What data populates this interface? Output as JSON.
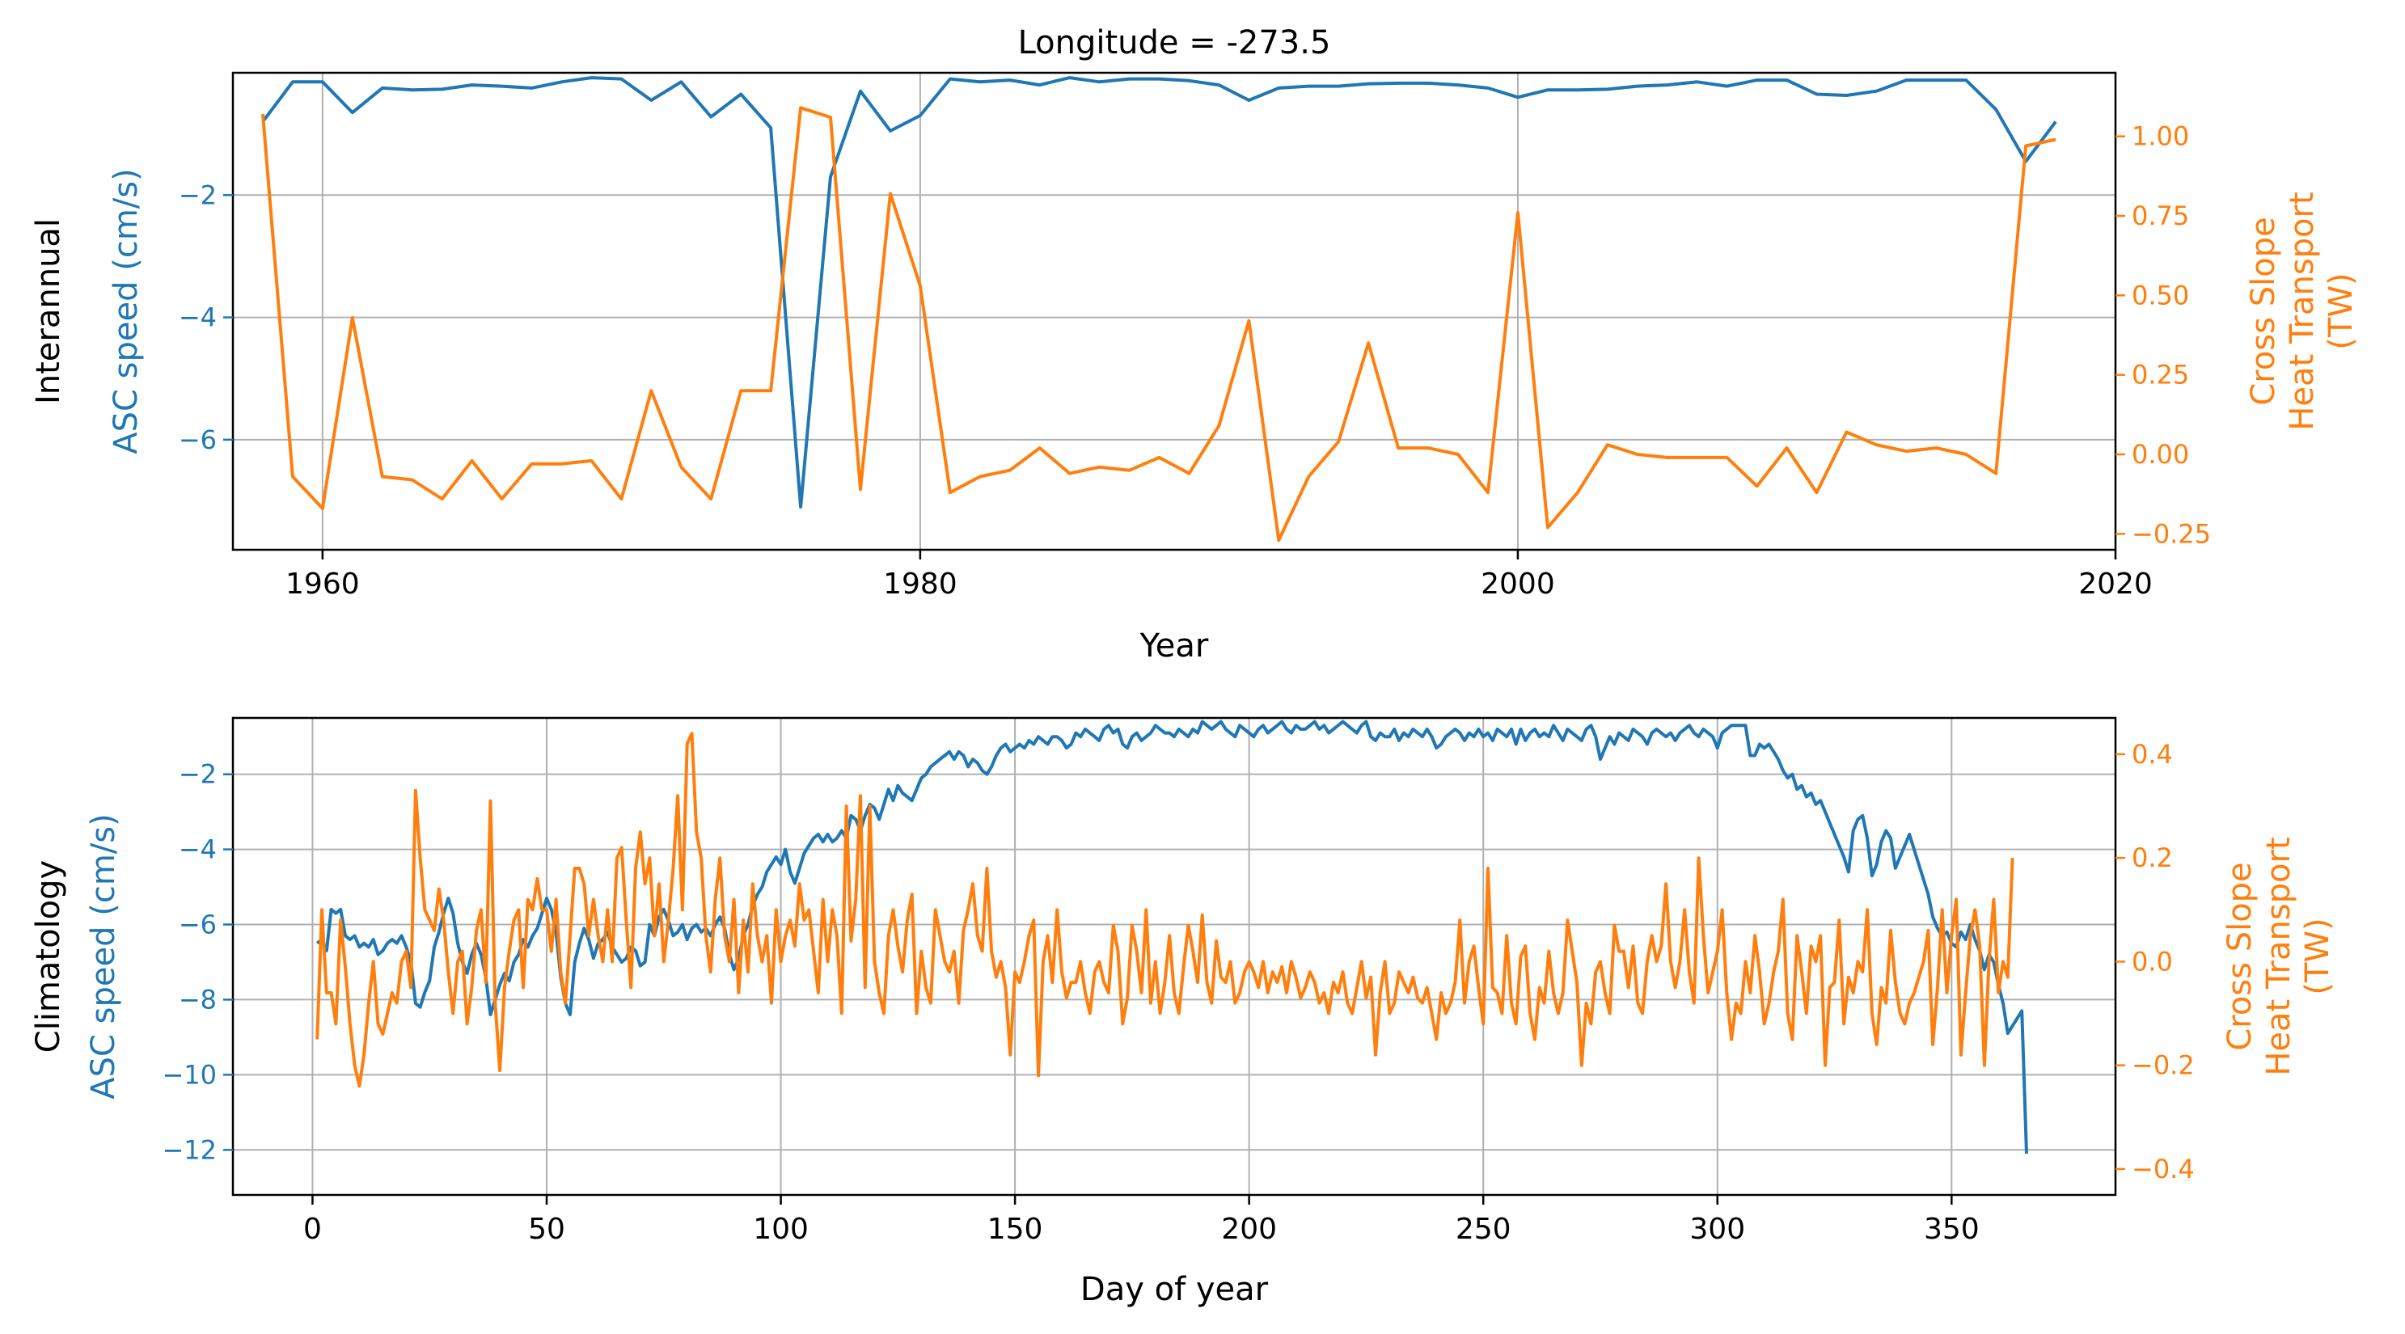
{
  "chart_data": [
    {
      "type": "line",
      "title": "Longitude = -273.5",
      "panel_label": "Interannual",
      "xlabel": "Year",
      "ylabel_left": "ASC speed (cm/s)",
      "ylabel_right": [
        "Cross Slope",
        "Heat Transport",
        "(TW)"
      ],
      "xlim": [
        1957,
        2020
      ],
      "ylim_left": [
        -7.8,
        0
      ],
      "ylim_right": [
        -0.3,
        1.2
      ],
      "xticks": [
        1960,
        1980,
        2000,
        2020
      ],
      "xtick_labels": [
        "1960",
        "1980",
        "2000",
        "2020"
      ],
      "yticks_left": [
        -2,
        -4,
        -6
      ],
      "ytick_labels_left": [
        "−2",
        "−4",
        "−6"
      ],
      "yticks_right": [
        1.0,
        0.75,
        0.5,
        0.25,
        0.0,
        -0.25
      ],
      "ytick_labels_right": [
        "1.00",
        "0.75",
        "0.50",
        "0.25",
        "0.00",
        "−0.25"
      ],
      "grid": true,
      "colors": {
        "left": "#1f77b4",
        "right": "#ff7f0e"
      },
      "x": [
        1958,
        1959,
        1960,
        1961,
        1962,
        1963,
        1964,
        1965,
        1966,
        1967,
        1968,
        1969,
        1970,
        1971,
        1972,
        1973,
        1974,
        1975,
        1976,
        1977,
        1978,
        1979,
        1980,
        1981,
        1982,
        1983,
        1984,
        1985,
        1986,
        1987,
        1988,
        1989,
        1990,
        1991,
        1992,
        1993,
        1994,
        1995,
        1996,
        1997,
        1998,
        1999,
        2000,
        2001,
        2002,
        2003,
        2004,
        2005,
        2006,
        2007,
        2008,
        2009,
        2010,
        2011,
        2012,
        2013,
        2014,
        2015,
        2016,
        2017,
        2018
      ],
      "series": [
        {
          "axis": "left",
          "color": "#1f77b4",
          "values": [
            -0.8,
            -0.15,
            -0.15,
            -0.65,
            -0.25,
            -0.28,
            -0.27,
            -0.2,
            -0.22,
            -0.25,
            -0.15,
            -0.08,
            -0.1,
            -0.45,
            -0.15,
            -0.72,
            -0.35,
            -0.9,
            -7.1,
            -1.7,
            -0.3,
            -0.95,
            -0.7,
            -0.1,
            -0.15,
            -0.12,
            -0.2,
            -0.08,
            -0.15,
            -0.1,
            -0.1,
            -0.13,
            -0.2,
            -0.45,
            -0.25,
            -0.22,
            -0.22,
            -0.18,
            -0.17,
            -0.17,
            -0.2,
            -0.25,
            -0.4,
            -0.28,
            -0.28,
            -0.27,
            -0.22,
            -0.2,
            -0.15,
            -0.22,
            -0.12,
            -0.12,
            -0.35,
            -0.37,
            -0.3,
            -0.12,
            -0.12,
            -0.12,
            -0.6,
            -1.45,
            -0.8
          ]
        },
        {
          "axis": "right",
          "color": "#ff7f0e",
          "values": [
            1.07,
            -0.07,
            -0.17,
            0.43,
            -0.07,
            -0.08,
            -0.14,
            -0.02,
            -0.14,
            -0.03,
            -0.03,
            -0.02,
            -0.14,
            0.2,
            -0.04,
            -0.14,
            0.2,
            0.2,
            1.09,
            1.06,
            -0.11,
            0.82,
            0.53,
            -0.12,
            -0.07,
            -0.05,
            0.02,
            -0.06,
            -0.04,
            -0.05,
            -0.01,
            -0.06,
            0.09,
            0.42,
            -0.27,
            -0.07,
            0.04,
            0.35,
            0.02,
            0.02,
            0.0,
            -0.12,
            0.76,
            -0.23,
            -0.12,
            0.03,
            0.0,
            -0.01,
            -0.01,
            -0.01,
            -0.1,
            0.02,
            -0.12,
            0.07,
            0.03,
            0.01,
            0.02,
            0.0,
            -0.06,
            0.97,
            0.99
          ]
        }
      ]
    },
    {
      "type": "line",
      "panel_label": "Climatology",
      "xlabel": "Day of year",
      "ylabel_left": "ASC speed (cm/s)",
      "ylabel_right": [
        "Cross Slope",
        "Heat Transport",
        "(TW)"
      ],
      "xlim": [
        -17,
        385
      ],
      "ylim_left": [
        -13.2,
        -0.5
      ],
      "ylim_right": [
        -0.45,
        0.47
      ],
      "xticks": [
        0,
        50,
        100,
        150,
        200,
        250,
        300,
        350
      ],
      "xtick_labels": [
        "0",
        "50",
        "100",
        "150",
        "200",
        "250",
        "300",
        "350"
      ],
      "yticks_left": [
        -2,
        -4,
        -6,
        -8,
        -10,
        -12
      ],
      "ytick_labels_left": [
        "−2",
        "−4",
        "−6",
        "−8",
        "−10",
        "−12"
      ],
      "yticks_right": [
        0.4,
        0.2,
        0.0,
        -0.2,
        -0.4
      ],
      "ytick_labels_right": [
        "0.4",
        "0.2",
        "0.0",
        "−0.2",
        "−0.4"
      ],
      "grid": true,
      "colors": {
        "left": "#1f77b4",
        "right": "#ff7f0e"
      },
      "x_start": 1,
      "x_step": 1,
      "series": [
        {
          "axis": "left",
          "color": "#1f77b4",
          "values": [
            -6.5,
            -6.4,
            -6.7,
            -5.6,
            -5.7,
            -5.6,
            -6.3,
            -6.4,
            -6.3,
            -6.6,
            -6.5,
            -6.6,
            -6.4,
            -6.8,
            -6.7,
            -6.5,
            -6.4,
            -6.5,
            -6.3,
            -6.6,
            -7.0,
            -8.1,
            -8.2,
            -7.8,
            -7.5,
            -6.6,
            -6.2,
            -5.7,
            -5.3,
            -5.7,
            -6.5,
            -7.0,
            -7.3,
            -6.8,
            -6.5,
            -6.8,
            -7.4,
            -8.4,
            -8.0,
            -7.6,
            -7.3,
            -7.5,
            -7.0,
            -6.8,
            -6.4,
            -6.6,
            -6.3,
            -6.1,
            -5.7,
            -5.3,
            -5.6,
            -6.2,
            -7.4,
            -8.1,
            -8.4,
            -7.0,
            -6.5,
            -6.1,
            -6.4,
            -6.9,
            -6.5,
            -6.4,
            -6.2,
            -6.6,
            -6.8,
            -7.0,
            -6.9,
            -6.6,
            -6.7,
            -7.1,
            -7.0,
            -6.0,
            -6.3,
            -5.8,
            -5.6,
            -5.9,
            -6.3,
            -6.2,
            -6.0,
            -6.4,
            -6.1,
            -6.0,
            -6.2,
            -6.1,
            -6.3,
            -6.0,
            -5.8,
            -6.1,
            -6.8,
            -7.2,
            -6.9,
            -6.3,
            -6.0,
            -5.5,
            -5.2,
            -5.0,
            -4.6,
            -4.4,
            -4.2,
            -4.4,
            -4.0,
            -4.6,
            -4.9,
            -4.5,
            -4.1,
            -3.9,
            -3.7,
            -3.6,
            -3.8,
            -3.6,
            -3.8,
            -3.7,
            -3.5,
            -3.7,
            -3.1,
            -3.2,
            -3.5,
            -3.1,
            -2.8,
            -2.9,
            -3.2,
            -2.8,
            -2.4,
            -2.7,
            -2.3,
            -2.5,
            -2.6,
            -2.7,
            -2.4,
            -2.1,
            -2.0,
            -1.8,
            -1.7,
            -1.6,
            -1.5,
            -1.4,
            -1.6,
            -1.4,
            -1.5,
            -1.8,
            -1.6,
            -1.7,
            -1.9,
            -2.0,
            -1.8,
            -1.5,
            -1.3,
            -1.2,
            -1.4,
            -1.3,
            -1.2,
            -1.3,
            -1.1,
            -1.2,
            -1.0,
            -1.1,
            -1.2,
            -1.0,
            -1.0,
            -1.1,
            -1.3,
            -1.2,
            -0.9,
            -1.0,
            -0.8,
            -0.9,
            -1.0,
            -1.1,
            -0.8,
            -0.7,
            -0.9,
            -0.8,
            -1.2,
            -1.3,
            -1.0,
            -0.9,
            -1.1,
            -1.0,
            -0.9,
            -0.7,
            -0.8,
            -0.9,
            -0.9,
            -1.0,
            -0.8,
            -0.9,
            -1.0,
            -0.8,
            -0.9,
            -0.6,
            -0.7,
            -0.8,
            -0.7,
            -0.6,
            -0.8,
            -0.9,
            -1.0,
            -0.7,
            -0.8,
            -0.9,
            -1.0,
            -0.8,
            -0.7,
            -0.9,
            -0.8,
            -0.7,
            -0.6,
            -0.8,
            -0.9,
            -0.7,
            -0.8,
            -0.8,
            -0.7,
            -0.6,
            -0.8,
            -0.7,
            -0.9,
            -0.8,
            -0.7,
            -0.6,
            -0.7,
            -0.8,
            -0.9,
            -0.7,
            -0.6,
            -1.0,
            -1.1,
            -0.9,
            -1.0,
            -1.0,
            -0.8,
            -1.1,
            -0.9,
            -1.0,
            -0.8,
            -0.9,
            -1.0,
            -0.8,
            -1.0,
            -1.3,
            -1.2,
            -1.0,
            -0.9,
            -0.8,
            -0.9,
            -1.1,
            -0.9,
            -1.0,
            -0.8,
            -1.0,
            -0.9,
            -1.1,
            -0.8,
            -0.9,
            -1.0,
            -0.8,
            -1.2,
            -0.8,
            -1.1,
            -0.9,
            -0.8,
            -1.0,
            -0.9,
            -1.0,
            -0.7,
            -0.9,
            -1.1,
            -0.8,
            -0.9,
            -1.0,
            -1.1,
            -0.8,
            -0.7,
            -1.0,
            -1.6,
            -1.3,
            -1.0,
            -1.2,
            -0.9,
            -1.0,
            -1.1,
            -0.8,
            -0.9,
            -1.0,
            -1.2,
            -0.9,
            -0.8,
            -0.9,
            -1.0,
            -0.9,
            -1.1,
            -0.9,
            -0.8,
            -0.7,
            -0.9,
            -1.0,
            -0.8,
            -0.9,
            -1.0,
            -1.3,
            -0.9,
            -0.8,
            -0.7,
            -0.7,
            -0.7,
            -0.7,
            -1.5,
            -1.5,
            -1.2,
            -1.3,
            -1.2,
            -1.4,
            -1.6,
            -1.9,
            -2.1,
            -2.0,
            -2.4,
            -2.3,
            -2.6,
            -2.5,
            -2.8,
            -2.7,
            -3.0,
            -3.3,
            -3.6,
            -3.9,
            -4.2,
            -4.6,
            -3.5,
            -3.2,
            -3.1,
            -3.7,
            -4.7,
            -4.4,
            -3.8,
            -3.5,
            -3.7,
            -4.5,
            -4.2,
            -3.9,
            -3.6,
            -4.0,
            -4.4,
            -4.8,
            -5.2,
            -5.8,
            -6.1,
            -6.3,
            -6.2,
            -6.5,
            -6.6,
            -6.2,
            -6.4,
            -6.0,
            -6.4,
            -6.7,
            -7.2,
            -6.8,
            -7.0,
            -7.6,
            -8.1,
            -8.9,
            -8.7,
            -8.5,
            -8.3,
            -12.1
          ]
        },
        {
          "axis": "right",
          "color": "#ff7f0e",
          "values": [
            -0.15,
            0.1,
            -0.06,
            -0.06,
            -0.12,
            0.08,
            -0.01,
            -0.12,
            -0.2,
            -0.24,
            -0.18,
            -0.08,
            0.0,
            -0.12,
            -0.14,
            -0.1,
            -0.06,
            -0.08,
            0.0,
            0.02,
            -0.05,
            0.33,
            0.2,
            0.1,
            0.08,
            0.06,
            0.14,
            0.08,
            -0.02,
            -0.1,
            0.0,
            0.02,
            -0.12,
            -0.05,
            0.06,
            0.1,
            -0.04,
            0.31,
            -0.08,
            -0.21,
            -0.05,
            0.02,
            0.08,
            0.1,
            -0.05,
            0.12,
            0.1,
            0.16,
            0.1,
            0.1,
            0.02,
            0.12,
            -0.02,
            -0.08,
            0.05,
            0.18,
            0.18,
            0.15,
            0.05,
            0.12,
            0.05,
            0.0,
            0.1,
            0.0,
            0.2,
            0.22,
            0.08,
            -0.05,
            0.18,
            0.25,
            0.15,
            0.2,
            0.05,
            0.15,
            0.0,
            0.08,
            0.18,
            0.32,
            0.1,
            0.42,
            0.44,
            0.25,
            0.2,
            0.05,
            -0.02,
            0.12,
            0.2,
            0.05,
            0.0,
            0.12,
            -0.06,
            0.08,
            -0.02,
            0.15,
            0.05,
            0.0,
            0.05,
            -0.08,
            0.1,
            0.0,
            0.05,
            0.08,
            0.03,
            0.15,
            0.08,
            0.1,
            0.02,
            -0.06,
            0.12,
            0.0,
            0.1,
            0.05,
            -0.1,
            0.3,
            0.04,
            0.12,
            0.32,
            -0.05,
            0.3,
            0.0,
            -0.06,
            -0.1,
            0.05,
            0.1,
            0.03,
            -0.02,
            0.08,
            0.13,
            -0.1,
            0.02,
            -0.05,
            -0.08,
            0.1,
            0.05,
            0.0,
            -0.02,
            0.02,
            -0.08,
            0.06,
            0.1,
            0.15,
            0.05,
            0.02,
            0.18,
            0.02,
            -0.03,
            0.0,
            -0.05,
            -0.18,
            -0.02,
            -0.04,
            0.0,
            0.05,
            0.08,
            -0.22,
            0.0,
            0.05,
            -0.04,
            0.1,
            -0.02,
            -0.07,
            -0.04,
            -0.04,
            0.0,
            -0.06,
            -0.1,
            -0.02,
            0.0,
            -0.04,
            -0.06,
            0.07,
            0.02,
            -0.12,
            -0.07,
            0.07,
            0.02,
            -0.06,
            0.1,
            -0.08,
            0.0,
            -0.1,
            -0.04,
            0.05,
            -0.06,
            -0.1,
            -0.01,
            0.07,
            0.02,
            -0.04,
            0.09,
            -0.04,
            -0.08,
            0.04,
            -0.03,
            -0.04,
            0.0,
            -0.08,
            -0.06,
            -0.02,
            0.0,
            -0.02,
            -0.05,
            0.0,
            -0.06,
            -0.02,
            -0.04,
            -0.01,
            -0.06,
            0.0,
            -0.03,
            -0.07,
            -0.05,
            -0.02,
            -0.04,
            -0.08,
            -0.06,
            -0.1,
            -0.04,
            -0.06,
            -0.02,
            -0.08,
            -0.1,
            -0.05,
            0.0,
            -0.07,
            -0.03,
            -0.18,
            -0.06,
            0.0,
            -0.1,
            -0.08,
            -0.02,
            -0.04,
            -0.06,
            -0.03,
            -0.07,
            -0.08,
            -0.05,
            -0.1,
            -0.15,
            -0.06,
            -0.1,
            -0.08,
            -0.04,
            0.08,
            -0.08,
            0.0,
            0.03,
            -0.05,
            -0.12,
            0.18,
            -0.05,
            -0.06,
            -0.1,
            0.05,
            -0.08,
            -0.12,
            0.01,
            0.03,
            -0.1,
            -0.15,
            -0.05,
            -0.08,
            0.02,
            -0.06,
            -0.1,
            -0.06,
            0.08,
            0.02,
            -0.04,
            -0.2,
            -0.08,
            -0.12,
            -0.02,
            0.0,
            -0.06,
            -0.1,
            0.07,
            0.02,
            0.02,
            -0.05,
            0.03,
            -0.08,
            -0.1,
            0.0,
            0.05,
            0.0,
            0.03,
            0.15,
            0.0,
            -0.05,
            0.0,
            0.1,
            -0.02,
            -0.08,
            0.2,
            0.05,
            -0.06,
            -0.02,
            0.02,
            0.1,
            -0.06,
            -0.15,
            -0.08,
            -0.1,
            0.0,
            -0.06,
            0.05,
            -0.02,
            -0.12,
            -0.08,
            -0.02,
            0.02,
            0.12,
            -0.1,
            -0.15,
            0.05,
            -0.02,
            -0.1,
            0.03,
            0.0,
            0.05,
            -0.2,
            -0.05,
            -0.04,
            0.08,
            -0.12,
            -0.03,
            -0.06,
            0.0,
            -0.02,
            0.1,
            -0.1,
            -0.16,
            -0.05,
            -0.08,
            0.06,
            -0.04,
            -0.1,
            -0.12,
            -0.08,
            -0.06,
            -0.03,
            0.0,
            0.06,
            -0.16,
            -0.05,
            0.1,
            -0.06,
            0.05,
            0.12,
            -0.18,
            -0.06,
            0.05,
            0.1,
            0.03,
            -0.2,
            0.0,
            0.12,
            -0.06,
            0.0,
            -0.03,
            0.2
          ]
        }
      ]
    }
  ]
}
